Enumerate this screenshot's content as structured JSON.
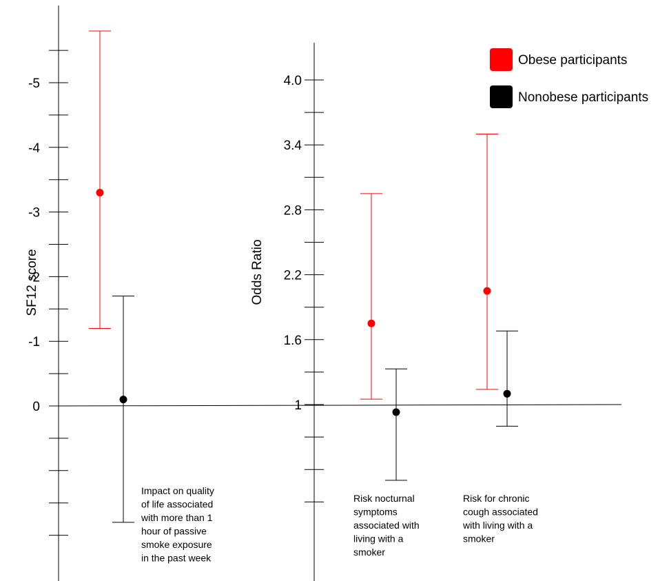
{
  "chart_data": {
    "type": "scatter",
    "subtype": "point-with-error-bars",
    "legend": {
      "placement": "top-right",
      "entries": [
        {
          "label": "Obese participants",
          "color": "#ff0000"
        },
        {
          "label": "Nonobese participants",
          "color": "#000000"
        }
      ]
    },
    "left_panel": {
      "ylabel": "SF12 score",
      "y_ticks": [
        "-5",
        "-4",
        "-3",
        "-2",
        "-1",
        "0"
      ],
      "y_tick_values": [
        -5,
        -4,
        -3,
        -2,
        -1,
        0
      ],
      "y_orientation": "inverted",
      "grid": false,
      "annotation": "Impact on quality of life associated with more than 1 hour of passive smoke exposure in the past week",
      "annotation_lines": [
        "Impact on quality",
        "of life associated",
        "with more than 1",
        "hour of passive",
        "smoke exposure",
        "in the past week"
      ],
      "series": [
        {
          "name": "Obese participants",
          "color": "#ff0000",
          "value": -3.3,
          "ci_low": -1.2,
          "ci_high": -5.8
        },
        {
          "name": "Nonobese participants",
          "color": "#000000",
          "value": -0.1,
          "ci_low": 1.8,
          "ci_high": -1.7
        }
      ]
    },
    "right_panel": {
      "ylabel": "Odds Ratio",
      "y_ticks": [
        "4.0",
        "3.4",
        "2.8",
        "2.2",
        "1.6",
        "1"
      ],
      "y_tick_values": [
        4.0,
        3.4,
        2.8,
        2.2,
        1.6,
        1.0
      ],
      "reference_line": 1.0,
      "grid": false,
      "categories": [
        {
          "label": "Risk nocturnal symptoms associated with living with a smoker",
          "label_lines": [
            "Risk nocturnal",
            "symptoms",
            "associated with",
            "living with a",
            "smoker"
          ],
          "obese": {
            "value": 1.75,
            "ci_low": 1.05,
            "ci_high": 2.95
          },
          "nonobese": {
            "value": 0.93,
            "ci_low": 0.3,
            "ci_high": 1.33
          }
        },
        {
          "label": "Risk for chronic cough associated with living with a smoker",
          "label_lines": [
            "Risk for chronic",
            "cough associated",
            "with living with a",
            "smoker"
          ],
          "obese": {
            "value": 2.05,
            "ci_low": 1.14,
            "ci_high": 3.5
          },
          "nonobese": {
            "value": 1.1,
            "ci_low": 0.8,
            "ci_high": 1.68
          }
        }
      ]
    }
  }
}
